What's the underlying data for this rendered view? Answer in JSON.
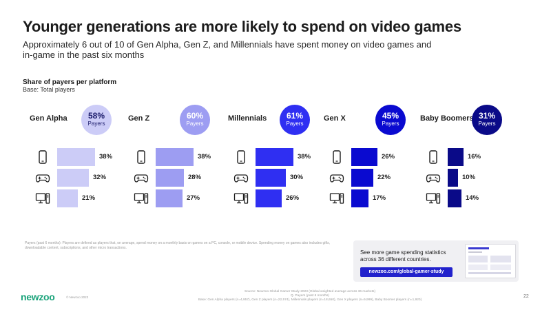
{
  "title": "Younger generations are more likely to spend on video games",
  "subtitle": "Approximately 6 out of 10 of Gen Alpha, Gen Z, and Millennials have spent money on video games and in-game in the past six months",
  "section_title": "Share of payers per platform",
  "section_base": "Base: Total players",
  "platform_icons": [
    "mobile-icon",
    "gamepad-icon",
    "pc-icon"
  ],
  "chart_data": {
    "type": "bar",
    "orientation": "horizontal",
    "title": "Share of payers per platform",
    "subtitle": "Base: Total players",
    "xlim": [
      0,
      40
    ],
    "categories": [
      "Mobile",
      "Console",
      "PC"
    ],
    "series": [
      {
        "name": "Gen Alpha",
        "overall": "58%",
        "overall_label": "Payers",
        "values": [
          38,
          32,
          21
        ],
        "color": "#ccccf7"
      },
      {
        "name": "Gen Z",
        "overall": "60%",
        "overall_label": "Payers",
        "values": [
          38,
          28,
          27
        ],
        "color": "#9d9df2"
      },
      {
        "name": "Millennials",
        "overall": "61%",
        "overall_label": "Payers",
        "values": [
          38,
          30,
          26
        ],
        "color": "#2f2ff2"
      },
      {
        "name": "Gen X",
        "overall": "45%",
        "overall_label": "Payers",
        "values": [
          26,
          22,
          17
        ],
        "color": "#0a0ad0"
      },
      {
        "name": "Baby Boomers",
        "overall": "31%",
        "overall_label": "Payers",
        "values": [
          16,
          10,
          14
        ],
        "color": "#0a0a88"
      }
    ]
  },
  "note": "Payers (past 6 months): Players are defined as players that, on average, spend money on a monthly basis on games on a PC, console, or mobile device. Spending money on games also includes gifts, downloadable content, subscriptions, and other micro transactions.",
  "promo": {
    "text": "See more game spending statistics across 36 different countries.",
    "button": "newzoo.com/global-gamer-study"
  },
  "footer": {
    "logo": "newzoo",
    "copyright": "© Newzoo 2023",
    "source_line1": "Source: Newzoo Global Gamer Study 2023 (Global weighted average across 36 markets)",
    "source_line2": "Q. Payers (past 6 months)",
    "source_line3": "Base: Gen Alpha players (n=4,957), Gen Z players (n=22,574), Millennials players (n=18,650), Gen X players (n=9,999), Baby Boomer players (n=1,920)",
    "page": "22"
  }
}
